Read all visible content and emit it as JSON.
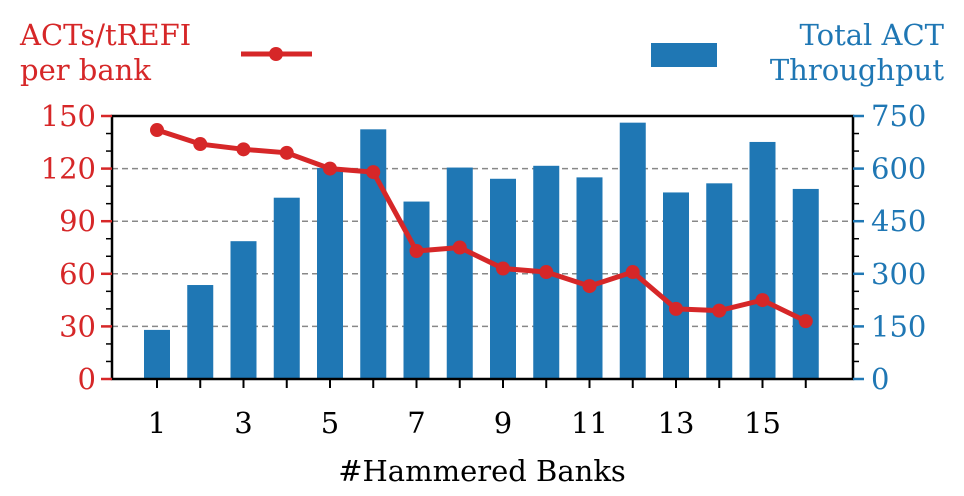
{
  "chart_data": {
    "type": "bar",
    "xlabel": "#Hammered Banks",
    "categories": [
      1,
      2,
      3,
      4,
      5,
      6,
      7,
      8,
      9,
      10,
      11,
      12,
      13,
      14,
      15,
      16
    ],
    "x_tick_labels": [
      "1",
      "3",
      "5",
      "7",
      "9",
      "11",
      "13",
      "15"
    ],
    "grid": "horizontal dashed",
    "legend_placement": "top",
    "series": [
      {
        "name": "ACTs/tREFI per bank",
        "name_lines": [
          "ACTs/tREFI",
          "per bank"
        ],
        "type": "line",
        "axis": "left",
        "color": "#d62728",
        "values": [
          142,
          134,
          131,
          129,
          120,
          118,
          73,
          75,
          63,
          61,
          53,
          61,
          40,
          39,
          45,
          33
        ]
      },
      {
        "name": "Total ACT Throughput",
        "name_lines": [
          "Total ACT",
          "Throughput"
        ],
        "type": "bar",
        "axis": "right",
        "color": "#1f77b4",
        "values": [
          140,
          268,
          393,
          517,
          602,
          712,
          506,
          603,
          571,
          608,
          575,
          731,
          532,
          558,
          676,
          542
        ]
      }
    ],
    "y_left": {
      "lim": [
        0,
        150
      ],
      "ticks": [
        0,
        30,
        60,
        90,
        120,
        150
      ],
      "color": "#d62728"
    },
    "y_right": {
      "lim": [
        0,
        750
      ],
      "ticks": [
        0,
        150,
        300,
        450,
        600,
        750
      ],
      "color": "#1f77b4"
    }
  }
}
